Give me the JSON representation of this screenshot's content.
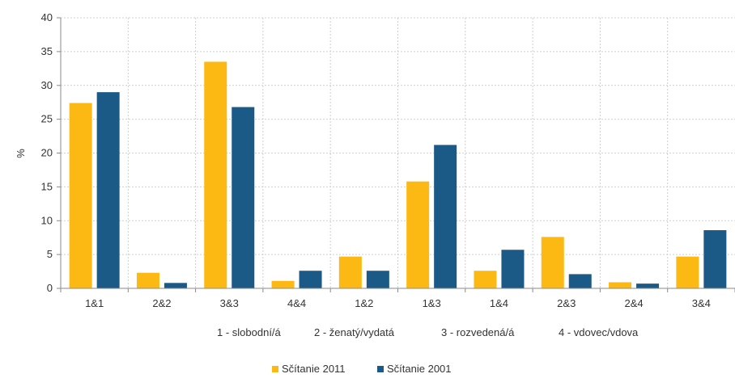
{
  "chart_data": {
    "type": "bar",
    "categories": [
      "1&1",
      "2&2",
      "3&3",
      "4&4",
      "1&2",
      "1&3",
      "1&4",
      "2&3",
      "2&4",
      "3&4"
    ],
    "series": [
      {
        "name": "Sčítanie 2011",
        "color": "#FDB913",
        "values": [
          27.4,
          2.3,
          33.5,
          1.1,
          4.7,
          15.8,
          2.6,
          7.6,
          0.9,
          4.7
        ]
      },
      {
        "name": "Sčítanie 2001",
        "color": "#1B5A87",
        "values": [
          29.0,
          0.8,
          26.8,
          2.6,
          2.6,
          21.2,
          5.7,
          2.1,
          0.7,
          8.6
        ]
      }
    ],
    "ylabel": "%",
    "ylim": [
      0,
      40
    ],
    "yticks": [
      0,
      5,
      10,
      15,
      20,
      25,
      30,
      35,
      40
    ],
    "grid": true,
    "legend_position": "bottom-center",
    "annotations": [
      "1 - slobodní/á",
      "2 - ženatý/vydatá",
      "3 - rozvedená/á",
      "4 - vdovec/vdova"
    ]
  }
}
